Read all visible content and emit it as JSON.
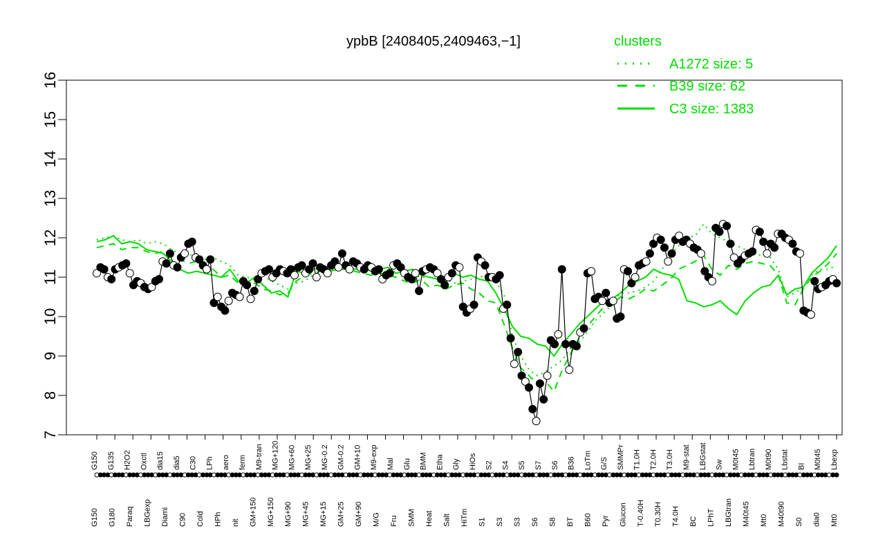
{
  "chart_data": {
    "type": "line",
    "title": "ypbB [2408405,2409463,−1]",
    "xlabel": "",
    "ylabel": "",
    "ylim": [
      7,
      16
    ],
    "yticks": [
      7,
      8,
      9,
      10,
      11,
      12,
      13,
      14,
      15,
      16
    ],
    "grid": false,
    "colors": {
      "accent": "#00dd00",
      "axis": "#000000"
    },
    "legend": {
      "title": "clusters",
      "placement": "top-right",
      "items": [
        {
          "label": "A1272 size: 5",
          "style": "dotted"
        },
        {
          "label": "B39 size: 62",
          "style": "dashed"
        },
        {
          "label": "C3 size: 1383",
          "style": "solid"
        }
      ]
    },
    "tick_labels_upper": [
      "G150",
      "G135",
      "H2O2",
      "Oxctl",
      "dia15",
      "dia5",
      "C30",
      "LPh",
      "aero",
      "ferm",
      "M9-tran",
      "MG+120",
      "MG+60",
      "MG+25",
      "MG-0.2",
      "GM-0.2",
      "GM+10",
      "M9-exp",
      "Mal",
      "Glu",
      "BMM",
      "Etha",
      "Gly",
      "HiOs",
      "S2",
      "S4",
      "S5",
      "S7",
      "S6",
      "B36",
      "LoTm",
      "G/S",
      "SMMPr",
      "T1.0H",
      "T2.0H",
      "T3.0H",
      "M9-stat",
      "LBGstat",
      "Sw",
      "M0t45",
      "Lbtran",
      "M0t90",
      "Lbstat",
      "BI",
      "M0t45",
      "Lbexp"
    ],
    "tick_labels_lower": [
      "G150",
      "G180",
      "Paraq",
      "LBGexp",
      "Diami",
      "C90",
      "Cold",
      "HPh",
      "nit",
      "GM+150",
      "MG+150",
      "MG+90",
      "MG+45",
      "MG+15",
      "GM+25",
      "GM+90",
      "M/G",
      "Fru",
      "SMM",
      "Heat",
      "Salt",
      "HiTm",
      "S1",
      "S3",
      "S3",
      "S6",
      "S8",
      "BT",
      "B60",
      "Pyr",
      "Glucon",
      "T-0.40H",
      "T0.30H",
      "T4.0H",
      "BC",
      "LPhT",
      "LBGtran",
      "M40t45",
      "Mt0",
      "M40t90",
      "S0",
      "dia0",
      "Mt0"
    ],
    "series": [
      {
        "values": [
          11.1,
          11.25,
          11.2,
          11.0,
          10.95,
          11.2,
          11.25,
          11.3,
          11.35,
          11.1,
          10.8,
          10.9,
          10.85,
          10.75,
          10.7,
          10.75,
          10.9,
          10.95,
          11.4,
          11.35,
          11.6,
          11.3,
          11.25,
          11.5,
          11.6,
          11.85,
          11.9,
          11.5,
          11.45,
          11.3,
          11.2,
          11.45,
          10.35,
          10.5,
          10.25,
          10.15,
          10.4,
          10.6,
          10.55,
          10.5,
          10.9,
          10.8,
          10.45,
          10.65,
          10.95,
          11.1,
          11.15,
          11.2,
          11.0,
          11.1,
          11.2,
          11.15,
          11.1,
          11.2,
          11.05,
          11.25,
          11.3,
          11.1,
          11.2,
          11.35,
          11.0,
          11.25,
          11.2,
          11.1,
          11.3,
          11.4,
          11.25,
          11.6,
          11.3,
          11.2,
          11.4,
          11.35,
          11.25,
          11.2,
          11.3,
          11.25,
          11.15,
          11.2,
          10.95,
          11.05,
          11.1,
          11.3,
          11.35,
          11.25,
          11.1,
          11.0,
          10.95,
          11.1,
          10.65,
          11.15,
          11.2,
          11.25,
          11.2,
          11.1,
          10.95,
          10.8,
          11.0,
          11.1,
          11.3,
          11.25,
          10.25,
          10.1,
          10.2,
          10.3,
          11.5,
          11.4,
          11.3,
          11.0,
          11.0,
          10.95,
          11.05,
          10.2,
          10.3,
          9.45,
          8.8,
          9.1,
          8.5,
          8.35,
          8.2,
          7.65,
          7.35,
          8.3,
          7.9,
          8.5,
          9.4,
          9.3,
          9.55,
          11.2,
          9.3,
          8.65,
          9.3,
          9.25,
          9.6,
          9.7,
          11.1,
          11.15,
          10.45,
          10.5,
          10.4,
          10.6,
          10.35,
          10.4,
          9.95,
          10.0,
          11.2,
          11.15,
          10.85,
          11.0,
          11.3,
          11.35,
          11.4,
          11.6,
          11.85,
          12.0,
          11.95,
          11.75,
          11.4,
          11.6,
          11.95,
          12.05,
          11.9,
          11.95,
          11.85,
          11.75,
          11.7,
          11.6,
          11.15,
          11.0,
          10.9,
          12.25,
          12.15,
          12.35,
          12.3,
          11.85,
          11.5,
          11.35,
          11.45,
          11.55,
          11.6,
          11.65,
          12.2,
          12.15,
          11.9,
          11.6,
          11.85,
          11.75,
          12.1,
          12.1,
          12.0,
          11.95,
          11.85,
          11.65,
          11.6,
          10.15,
          10.1,
          10.05,
          10.9,
          10.7,
          10.75,
          10.8,
          10.9,
          10.95,
          10.85
        ]
      }
    ],
    "clusters": {
      "A1272": [
        11.95,
        12.0,
        12.05,
        11.95,
        11.9,
        11.95,
        11.85,
        11.9,
        11.85,
        11.7,
        11.6,
        11.55,
        11.6,
        11.45,
        11.5,
        11.4,
        11.3,
        11.05,
        11.0,
        10.95,
        11.05,
        10.9,
        10.8,
        10.7,
        10.85,
        10.9,
        11.05,
        11.15,
        11.2,
        11.2,
        11.25,
        11.2,
        11.25,
        11.2,
        11.15,
        11.15,
        11.2,
        11.15,
        11.05,
        11.0,
        11.0,
        11.05,
        10.95,
        10.85,
        10.9,
        10.95,
        11.0,
        11.05,
        10.9,
        10.55,
        9.5,
        9.0,
        8.65,
        8.5,
        8.6,
        8.75,
        8.9,
        9.2,
        9.35,
        9.6,
        9.9,
        10.1,
        10.3,
        10.6,
        10.6,
        10.65,
        10.75,
        10.9,
        11.2,
        11.55,
        11.8,
        12.0,
        12.05,
        12.35,
        12.1,
        12.0,
        11.9,
        11.8,
        11.7,
        11.6,
        11.55,
        11.5,
        11.2,
        10.5,
        10.6,
        10.75,
        11.05,
        11.2,
        11.2,
        11.3
      ],
      "B39": [
        11.75,
        11.8,
        11.85,
        11.7,
        11.75,
        11.75,
        11.65,
        11.6,
        11.65,
        11.55,
        11.45,
        11.35,
        11.4,
        11.25,
        11.2,
        11.0,
        11.05,
        10.85,
        10.75,
        10.85,
        10.7,
        10.65,
        10.55,
        10.6,
        10.9,
        11.05,
        11.1,
        11.15,
        11.15,
        11.2,
        11.2,
        11.15,
        11.1,
        11.05,
        11.1,
        11.05,
        11.0,
        10.9,
        10.85,
        10.95,
        10.75,
        10.8,
        10.7,
        10.8,
        10.85,
        10.7,
        10.6,
        10.4,
        10.35,
        9.8,
        9.2,
        8.7,
        8.5,
        8.3,
        8.35,
        8.1,
        8.65,
        9.05,
        9.45,
        9.75,
        10.0,
        10.25,
        10.3,
        10.5,
        10.45,
        10.55,
        10.7,
        10.65,
        10.8,
        10.95,
        11.2,
        11.3,
        11.4,
        11.55,
        11.2,
        11.05,
        11.3,
        11.2,
        11.35,
        11.4,
        11.35,
        11.3,
        11.05,
        10.35,
        10.3,
        10.7,
        11.0,
        11.15,
        11.35,
        11.6
      ],
      "C3": [
        11.9,
        11.95,
        12.05,
        11.85,
        11.9,
        11.85,
        11.7,
        11.65,
        11.6,
        11.4,
        11.2,
        11.1,
        11.15,
        11.1,
        11.05,
        11.0,
        11.2,
        10.9,
        10.85,
        11.0,
        10.8,
        10.6,
        10.65,
        10.5,
        11.15,
        11.1,
        11.2,
        11.25,
        11.2,
        11.25,
        11.3,
        11.2,
        11.25,
        11.15,
        11.2,
        11.25,
        11.1,
        11.15,
        11.2,
        11.05,
        11.0,
        10.95,
        10.9,
        11.1,
        11.0,
        11.05,
        10.95,
        10.9,
        10.6,
        10.2,
        9.75,
        9.5,
        9.45,
        9.3,
        9.25,
        9.0,
        9.3,
        9.55,
        9.8,
        10.0,
        10.2,
        10.4,
        10.45,
        10.6,
        10.8,
        10.9,
        11.0,
        11.2,
        11.1,
        11.05,
        10.95,
        10.4,
        10.35,
        10.25,
        10.3,
        10.4,
        10.2,
        10.05,
        10.4,
        10.6,
        10.75,
        10.8,
        11.05,
        10.55,
        10.7,
        10.75,
        11.1,
        11.3,
        11.5,
        11.8
      ]
    }
  }
}
